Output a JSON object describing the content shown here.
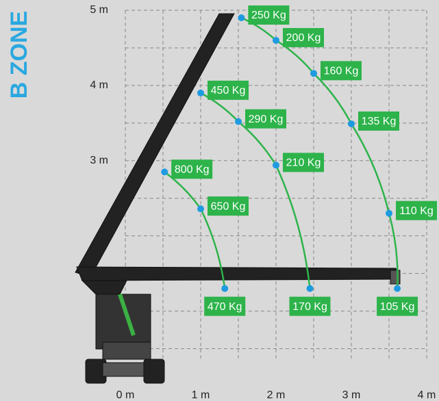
{
  "chart_data": {
    "type": "scatter",
    "title": "B ZONE",
    "xlim": [
      0,
      4
    ],
    "ylim": [
      0.35,
      5
    ],
    "xticks": [
      {
        "value": 0,
        "label": "0 m"
      },
      {
        "value": 1,
        "label": "1 m"
      },
      {
        "value": 2,
        "label": "2 m"
      },
      {
        "value": 3,
        "label": "3 m"
      },
      {
        "value": 4,
        "label": "4 m"
      }
    ],
    "yticks": [
      {
        "value": 3,
        "label": "3 m"
      },
      {
        "value": 4,
        "label": "4 m"
      },
      {
        "value": 5,
        "label": "5 m"
      }
    ],
    "grid": true,
    "series": [
      {
        "color": "#2db34a",
        "x": [
          1.54,
          2.0,
          2.5,
          3.0,
          3.5,
          3.61
        ],
        "values": [
          4.9,
          4.6,
          4.16,
          3.49,
          2.3,
          1.3
        ],
        "labels": [
          "250 Kg",
          "200 Kg",
          "160 Kg",
          "135 Kg",
          "110 Kg",
          "105 Kg"
        ]
      },
      {
        "color": "#2db34a",
        "x": [
          1.0,
          1.5,
          2.0,
          2.45
        ],
        "values": [
          3.9,
          3.52,
          2.94,
          1.3
        ],
        "labels": [
          "450 Kg",
          "290 Kg",
          "210 Kg",
          "170 Kg"
        ]
      },
      {
        "color": "#2db34a",
        "x": [
          0.52,
          1.0,
          1.32
        ],
        "values": [
          2.85,
          2.36,
          1.3
        ],
        "labels": [
          "800 Kg",
          "650 Kg",
          "470 Kg"
        ]
      }
    ],
    "point_color": "#1e9be0"
  }
}
